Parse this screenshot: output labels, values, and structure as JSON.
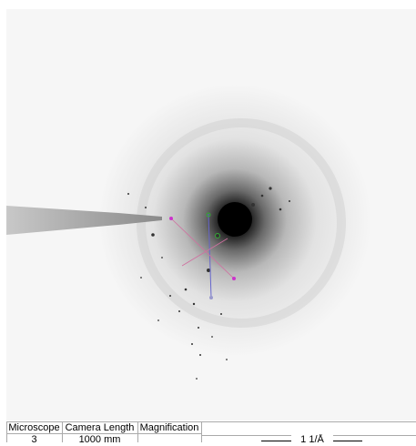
{
  "table": {
    "headers": [
      "Microscope",
      "Camera Length",
      "Magnification"
    ],
    "values": [
      "3",
      "1000 mm"
    ]
  },
  "scale_bar": "1 1/Å"
}
